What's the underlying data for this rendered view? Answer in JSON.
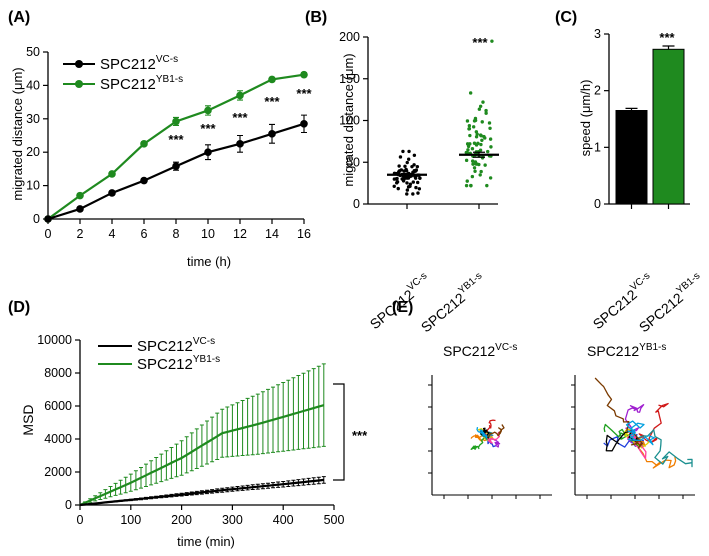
{
  "panels": {
    "A": {
      "label": "(A)",
      "xlabel": "time (h)",
      "ylabel": "migrated distance (μm)",
      "xticks": [
        "0",
        "2",
        "4",
        "6",
        "8",
        "10",
        "12",
        "14",
        "16"
      ],
      "yticks": [
        "0",
        "10",
        "20",
        "30",
        "40",
        "50"
      ],
      "legend": [
        {
          "base": "SPC212",
          "sup": "VC-s"
        },
        {
          "base": "SPC212",
          "sup": "YB1-s"
        }
      ],
      "stars": "***"
    },
    "B": {
      "label": "(B)",
      "ylabel": "migrated distance (μm)",
      "yticks": [
        "0",
        "50",
        "100",
        "150",
        "200"
      ],
      "categories": [
        {
          "base": "SPC212",
          "sup": "VC-s"
        },
        {
          "base": "SPC212",
          "sup": "YB1-s"
        }
      ],
      "stars": "***"
    },
    "C": {
      "label": "(C)",
      "ylabel": "speed (μm/h)",
      "yticks": [
        "0",
        "1",
        "2",
        "3"
      ],
      "categories": [
        {
          "base": "SPC212",
          "sup": "VC-s"
        },
        {
          "base": "SPC212",
          "sup": "YB1-s"
        }
      ],
      "stars": "***"
    },
    "D": {
      "label": "(D)",
      "xlabel": "time (min)",
      "ylabel": "MSD",
      "xticks": [
        "0",
        "100",
        "200",
        "300",
        "400",
        "500"
      ],
      "yticks": [
        "0",
        "2000",
        "4000",
        "6000",
        "8000",
        "10000"
      ],
      "legend": [
        {
          "base": "SPC212",
          "sup": "VC-s"
        },
        {
          "base": "SPC212",
          "sup": "YB1-s"
        }
      ],
      "stars": "***"
    },
    "E": {
      "label": "(E)",
      "titles": [
        {
          "base": "SPC212",
          "sup": "VC-s"
        },
        {
          "base": "SPC212",
          "sup": "YB1-s"
        }
      ]
    }
  },
  "colors": {
    "vc": "#000000",
    "yb1": "#1f8a1f",
    "track_palette": [
      "#1f3fdc",
      "#d01818",
      "#f07d00",
      "#20a020",
      "#a020d0",
      "#e0d000",
      "#1a8f8f",
      "#ff40a0",
      "#000000",
      "#7a3a00",
      "#00a0e0"
    ]
  },
  "chart_data": [
    {
      "type": "line",
      "panel": "A",
      "x": [
        0,
        2,
        4,
        6,
        8,
        10,
        12,
        14,
        16
      ],
      "series": [
        {
          "name": "SPC212VC-s",
          "values": [
            0,
            3,
            7.8,
            11.5,
            15.8,
            20,
            22.5,
            25.5,
            28.5
          ],
          "err": [
            0,
            0.4,
            0.5,
            0.6,
            1.2,
            2.2,
            2.5,
            2.8,
            2.6
          ]
        },
        {
          "name": "SPC212YB1-s",
          "values": [
            0,
            7,
            13.5,
            22.5,
            29.2,
            32.5,
            37,
            41.8,
            43.2
          ],
          "err": [
            0,
            0.4,
            0.5,
            0.6,
            1.2,
            1.4,
            1.4,
            0.6,
            0.6
          ]
        }
      ],
      "annotations": [
        {
          "x": 8,
          "text": "***"
        },
        {
          "x": 10,
          "text": "***"
        },
        {
          "x": 12,
          "text": "***"
        },
        {
          "x": 14,
          "text": "***"
        },
        {
          "x": 16,
          "text": "***"
        }
      ],
      "xlim": [
        0,
        16
      ],
      "ylim": [
        0,
        50
      ]
    },
    {
      "type": "scatter",
      "panel": "B",
      "categories": [
        "SPC212VC-s",
        "SPC212YB1-s"
      ],
      "series": [
        {
          "name": "SPC212VC-s",
          "center": 35,
          "min": 12,
          "max": 63,
          "n": 70,
          "sd": 10,
          "seed": 11
        },
        {
          "name": "SPC212YB1-s",
          "center": 59,
          "min": 22,
          "max": 195,
          "n": 70,
          "sd": 24,
          "seed": 29
        }
      ],
      "ylim": [
        0,
        200
      ]
    },
    {
      "type": "bar",
      "panel": "C",
      "categories": [
        "SPC212VC-s",
        "SPC212YB1-s"
      ],
      "values": [
        1.65,
        2.73
      ],
      "err": [
        0.02,
        0.04
      ],
      "ylim": [
        0,
        3
      ]
    },
    {
      "type": "line",
      "panel": "D",
      "x_max": 480,
      "x_step": 10,
      "series": [
        {
          "name": "SPC212VC-s",
          "values": [
            [
              0,
              0
            ],
            [
              100,
              310
            ],
            [
              200,
              630
            ],
            [
              300,
              960
            ],
            [
              400,
              1260
            ],
            [
              480,
              1520
            ]
          ],
          "err_end": 200
        },
        {
          "name": "SPC212YB1-s",
          "values": [
            [
              0,
              0
            ],
            [
              100,
              1350
            ],
            [
              200,
              2850
            ],
            [
              280,
              4350
            ],
            [
              350,
              4900
            ],
            [
              480,
              6050
            ]
          ],
          "err_end": 2500
        }
      ],
      "xlim": [
        0,
        500
      ],
      "ylim": [
        0,
        10000
      ]
    }
  ]
}
